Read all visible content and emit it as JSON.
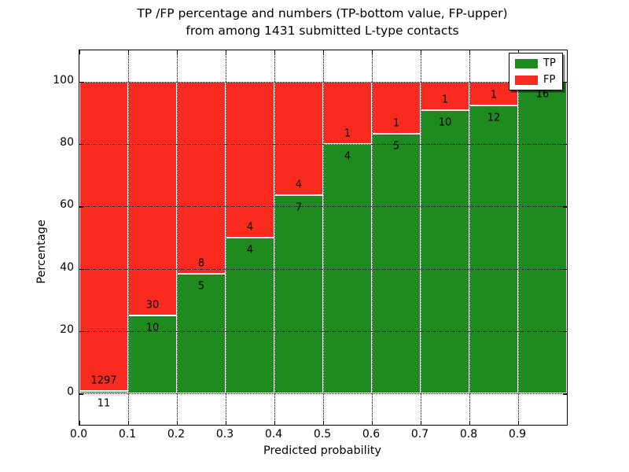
{
  "title": {
    "line1": "TP /FP percentage and numbers (TP-bottom value, FP-upper)",
    "line2": "from among 1431 submitted L-type contacts"
  },
  "chart_data": {
    "type": "bar",
    "stacked": true,
    "normalized_to_percent": true,
    "title": "TP /FP percentage and numbers (TP-bottom value, FP-upper)\nfrom among 1431 submitted L-type contacts",
    "xlabel": "Predicted probability",
    "ylabel": "Percentage",
    "total_contacts": 1431,
    "bins": [
      "0.0-0.1",
      "0.1-0.2",
      "0.2-0.3",
      "0.3-0.4",
      "0.4-0.5",
      "0.5-0.6",
      "0.6-0.7",
      "0.7-0.8",
      "0.8-0.9",
      "0.9-1.0"
    ],
    "series": [
      {
        "name": "TP",
        "color": "#1f8a1f",
        "values": [
          11,
          10,
          5,
          4,
          7,
          4,
          5,
          10,
          12,
          16
        ]
      },
      {
        "name": "FP",
        "color": "#f92b1e",
        "values": [
          1297,
          30,
          8,
          4,
          4,
          1,
          1,
          1,
          1,
          0
        ]
      }
    ],
    "tp_percent": [
      0.84,
      25.0,
      38.46,
      50.0,
      63.64,
      80.0,
      83.33,
      90.91,
      92.31,
      100.0
    ],
    "ylim": [
      -10,
      110
    ],
    "xlim": [
      0.0,
      1.0
    ],
    "yticks": [
      0,
      20,
      40,
      60,
      80,
      100
    ],
    "xticks": [
      "0.0",
      "0.1",
      "0.2",
      "0.3",
      "0.4",
      "0.5",
      "0.6",
      "0.7",
      "0.8",
      "0.9"
    ],
    "grid": true,
    "grid_style": "dotted",
    "legend_position": "upper right"
  }
}
